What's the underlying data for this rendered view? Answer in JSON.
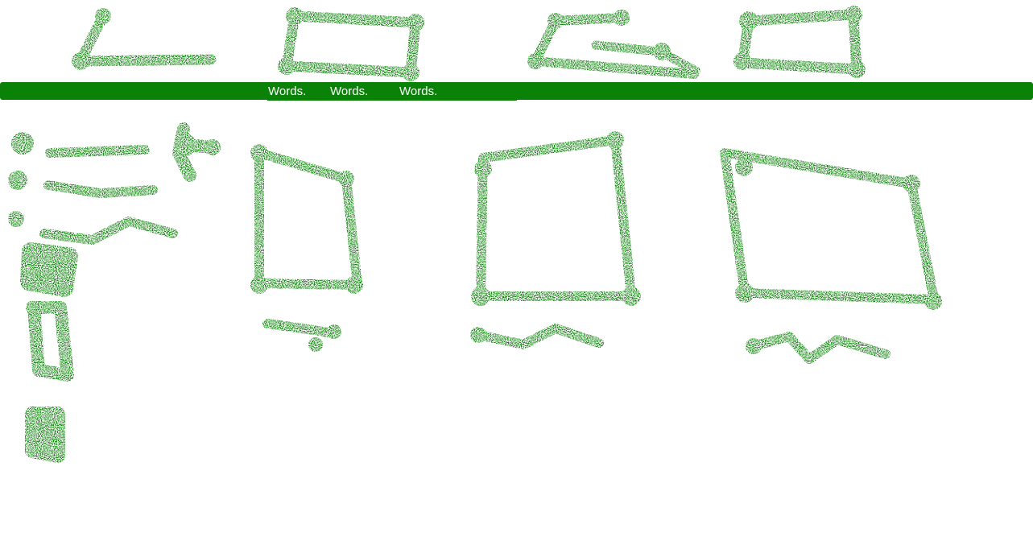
{
  "colors": {
    "accent": "#0a8207",
    "nav_text": "#ffffff",
    "background": "#ffffff"
  },
  "nav": {
    "links": [
      {
        "label": "Words."
      },
      {
        "label": "Words."
      },
      {
        "label": "Words."
      }
    ]
  }
}
